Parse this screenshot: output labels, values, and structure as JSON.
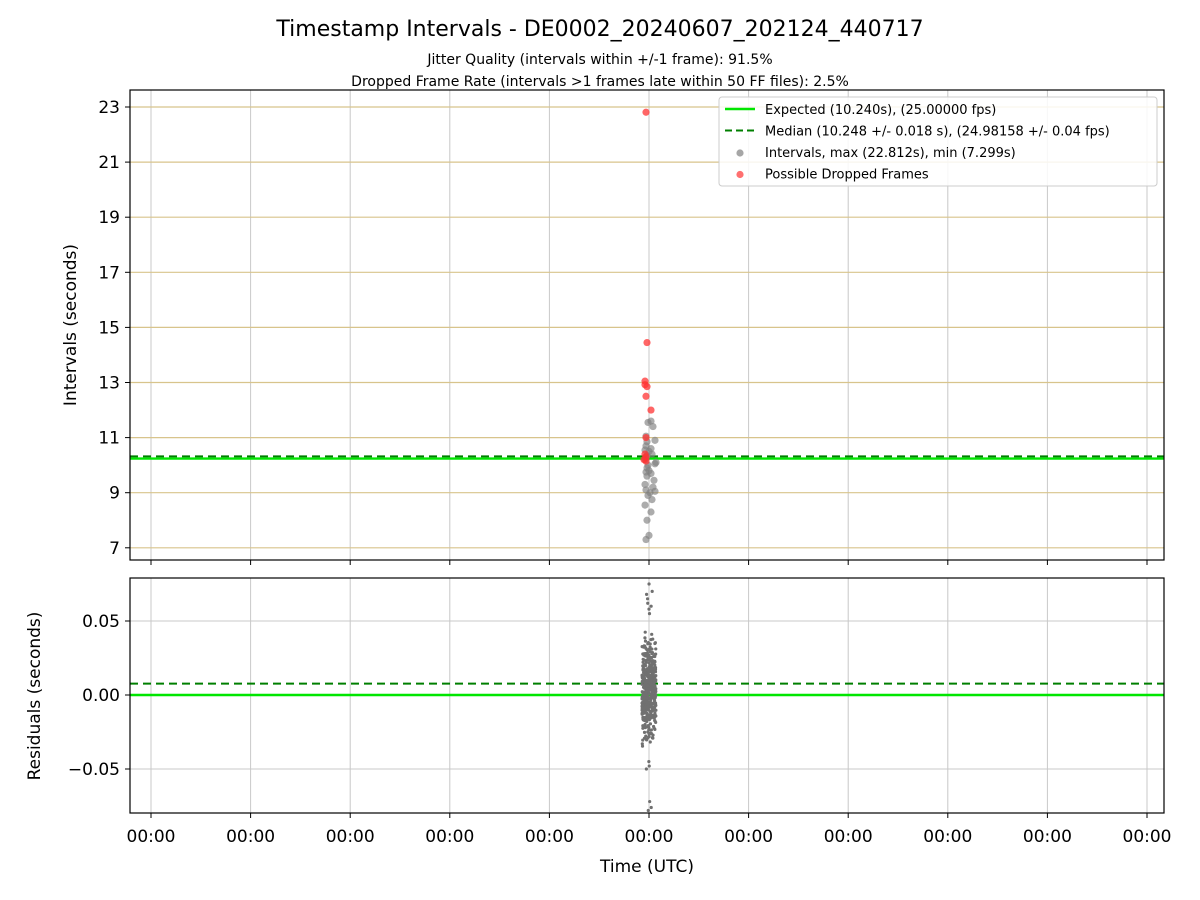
{
  "chart_data": [
    {
      "type": "scatter",
      "title": "Timestamp Intervals - DE0002_20240607_202124_440717",
      "subtitle_lines": [
        "Jitter Quality (intervals within +/-1 frame): 91.5%",
        "Dropped Frame Rate (intervals >1 frames late within 50 FF files): 2.5%"
      ],
      "xlabel": "",
      "ylabel": "Intervals (seconds)",
      "ylim": [
        6.5,
        23.6
      ],
      "yticks": [
        7,
        9,
        11,
        13,
        15,
        17,
        19,
        21,
        23
      ],
      "ytick_labels": [
        "7",
        "9",
        "11",
        "13",
        "15",
        "17",
        "19",
        "21",
        "23"
      ],
      "grid": true,
      "legend_position": "top-right",
      "expected_interval": 10.24,
      "median_interval": 10.248,
      "legend": [
        {
          "label": "Expected (10.240s), (25.00000 fps)",
          "kind": "line-solid",
          "color": "#00e600"
        },
        {
          "label": "Median (10.248 +/- 0.018 s), (24.98158 +/- 0.04 fps)",
          "kind": "line-dashed",
          "color": "#007f00"
        },
        {
          "label": "Intervals, max (22.812s), min (7.299s)",
          "kind": "dot",
          "color": "#808080"
        },
        {
          "label": "Possible Dropped Frames",
          "kind": "dot",
          "color": "#ff3333"
        }
      ],
      "series": [
        {
          "name": "Intervals, max (22.812s), min (7.299s)",
          "color": "#808080",
          "x": [
            4.97,
            5.0,
            4.98,
            5.02,
            4.96,
            5.03,
            4.99,
            5.01,
            4.97,
            5.04,
            4.96,
            5.05,
            4.98,
            5.02,
            4.97,
            5.0,
            4.98,
            4.99,
            5.06,
            5.07,
            4.96,
            4.97,
            4.97,
            4.98,
            5.03,
            5.0,
            4.96,
            4.97,
            4.97,
            5.04,
            5.02,
            4.99,
            5.06,
            5.02,
            4.98,
            5.06
          ],
          "y": [
            7.3,
            7.45,
            8.0,
            8.3,
            8.55,
            8.75,
            8.9,
            9.0,
            9.1,
            9.2,
            9.3,
            9.45,
            9.6,
            9.7,
            9.75,
            9.8,
            9.9,
            10.0,
            10.05,
            10.1,
            10.2,
            10.25,
            10.3,
            10.35,
            10.4,
            10.5,
            10.55,
            10.7,
            11.05,
            11.4,
            11.6,
            11.55,
            9.05,
            10.6,
            10.85,
            10.9
          ]
        },
        {
          "name": "Possible Dropped Frames",
          "color": "#ff3333",
          "x": [
            4.97,
            4.98,
            4.96,
            4.96,
            4.97,
            4.98,
            4.96,
            4.97,
            5.02,
            4.95,
            4.97,
            4.97
          ],
          "y": [
            22.81,
            14.45,
            13.05,
            12.92,
            12.5,
            12.85,
            10.4,
            10.3,
            12.0,
            10.2,
            10.15,
            11.0
          ]
        }
      ]
    },
    {
      "type": "scatter",
      "xlabel": "Time (UTC)",
      "ylabel": "Residuals (seconds)",
      "ylim": [
        -0.08,
        0.08
      ],
      "yticks": [
        -0.05,
        0.0,
        0.05
      ],
      "ytick_labels": [
        "−0.05",
        "0.00",
        "0.05"
      ],
      "xticks": [
        0,
        1,
        2,
        3,
        4,
        5,
        6,
        7,
        8,
        9,
        10
      ],
      "xtick_labels": [
        "00:00",
        "00:00",
        "00:00",
        "00:00",
        "00:00",
        "00:00",
        "00:00",
        "00:00",
        "00:00",
        "00:00",
        "00:00"
      ],
      "grid": true,
      "expected_residual": 0.0,
      "median_residual": 0.007,
      "series": [
        {
          "name": "",
          "color": "#707070",
          "x_center": 5.0,
          "x_spread": 0.07,
          "y_outliers": [
            0.075,
            0.07,
            0.068,
            0.065,
            0.062,
            0.06,
            0.058,
            0.055,
            -0.045,
            -0.048,
            -0.05,
            -0.072,
            -0.076,
            -0.078
          ],
          "y_core_range": [
            -0.042,
            0.052
          ]
        }
      ]
    }
  ]
}
